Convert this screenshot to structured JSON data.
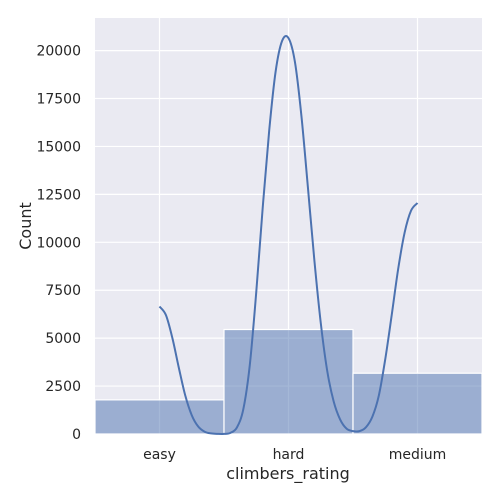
{
  "chart_data": {
    "type": "bar",
    "categories": [
      "easy",
      "hard",
      "medium"
    ],
    "values": [
      1780,
      5450,
      3170
    ],
    "kde": {
      "x": [
        0.0,
        0.05,
        0.1,
        0.15,
        0.2,
        0.25,
        0.3,
        0.35,
        0.4,
        0.45,
        0.5,
        0.55,
        0.6,
        0.65,
        0.7,
        0.75,
        0.8,
        0.85,
        0.9,
        0.95,
        1.0,
        1.05,
        1.1,
        1.15,
        1.2,
        1.25,
        1.3,
        1.35,
        1.4,
        1.45,
        1.5,
        1.55,
        1.6,
        1.65,
        1.7,
        1.75,
        1.8,
        1.85,
        1.9,
        1.95,
        2.0
      ],
      "y": [
        6650,
        6200,
        5000,
        3450,
        2000,
        980,
        390,
        120,
        30,
        6,
        5,
        60,
        340,
        1300,
        3600,
        7400,
        11800,
        15800,
        18900,
        20500,
        20650,
        19400,
        16600,
        12900,
        9100,
        5800,
        3300,
        1700,
        760,
        280,
        150,
        150,
        350,
        900,
        2000,
        3900,
        6200,
        8600,
        10500,
        11650,
        12050
      ]
    },
    "title": "",
    "xlabel": "climbers_rating",
    "ylabel": "Count",
    "ylim": [
      0,
      21700
    ],
    "yticks": [
      0,
      2500,
      5000,
      7500,
      10000,
      12500,
      15000,
      17500,
      20000
    ],
    "ytick_labels": [
      "0",
      "2500",
      "5000",
      "7500",
      "10000",
      "12500",
      "15000",
      "17500",
      "20000"
    ],
    "grid": true,
    "colors": {
      "background": "#EAEAF2",
      "grid": "#FFFFFF",
      "bar_fill": "#4C72B0",
      "bar_alpha": 0.5,
      "kde_line": "#4C72B0"
    }
  }
}
